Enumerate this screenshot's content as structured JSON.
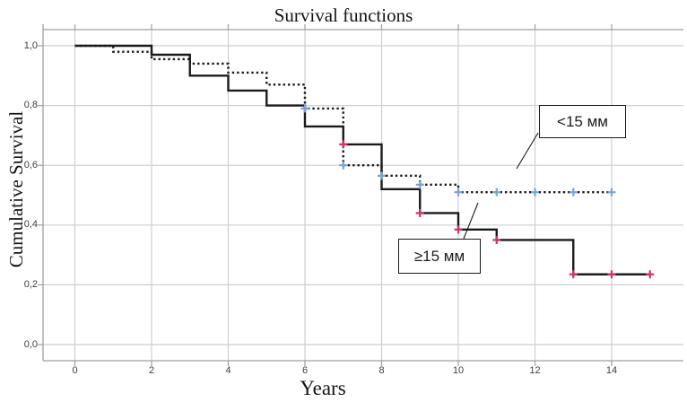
{
  "chart_data": {
    "type": "line",
    "variant": "kaplan_meier_survival_steps",
    "title": "Survival functions",
    "xlabel": "Years",
    "ylabel": "Cumulative Survival",
    "xlim": [
      -0.85,
      15.9
    ],
    "ylim": [
      -0.055,
      1.055
    ],
    "xticks": [
      0,
      2,
      4,
      6,
      8,
      10,
      12,
      14
    ],
    "yticks": [
      1.0,
      0.8,
      0.6,
      0.4,
      0.2,
      0.0
    ],
    "ytick_labels": [
      "1,0",
      "0,8",
      "0,6",
      "0,4",
      "0,2",
      "0,0"
    ],
    "grid": true,
    "colors": {
      "curve": "#1b1b1b",
      "gridline": "#cbcfd3",
      "axis_frame": "#9aa0a4",
      "censor_ge15": "#d23565",
      "censor_lt15": "#7aa3d8"
    },
    "series": [
      {
        "name": "≥15 мм",
        "line_style": "solid",
        "steps": [
          [
            0,
            1.0
          ],
          [
            2,
            0.97
          ],
          [
            3,
            0.9
          ],
          [
            4,
            0.85
          ],
          [
            5,
            0.8
          ],
          [
            6,
            0.73
          ],
          [
            7,
            0.67
          ],
          [
            8,
            0.52
          ],
          [
            9,
            0.44
          ],
          [
            10,
            0.385
          ],
          [
            11,
            0.35
          ],
          [
            13,
            0.235
          ]
        ],
        "end_x": 15,
        "censors": [
          [
            7,
            0.67
          ],
          [
            9,
            0.44
          ],
          [
            10,
            0.385
          ],
          [
            11,
            0.35
          ],
          [
            13,
            0.235
          ],
          [
            14,
            0.235
          ],
          [
            15,
            0.235
          ]
        ]
      },
      {
        "name": "<15 мм",
        "line_style": "dotted",
        "steps": [
          [
            0,
            1.0
          ],
          [
            1,
            0.98
          ],
          [
            2,
            0.955
          ],
          [
            3,
            0.94
          ],
          [
            4,
            0.91
          ],
          [
            5,
            0.87
          ],
          [
            6,
            0.79
          ],
          [
            7,
            0.6
          ],
          [
            8,
            0.565
          ],
          [
            9,
            0.535
          ],
          [
            10,
            0.51
          ]
        ],
        "end_x": 14,
        "censors": [
          [
            6,
            0.79
          ],
          [
            7,
            0.6
          ],
          [
            8,
            0.565
          ],
          [
            9,
            0.535
          ],
          [
            10,
            0.51
          ],
          [
            11,
            0.51
          ],
          [
            12,
            0.51
          ],
          [
            13,
            0.51
          ],
          [
            14,
            0.51
          ]
        ]
      }
    ],
    "annotations": [
      {
        "label": "<15 мм",
        "points_to": "dotted curve"
      },
      {
        "label": "≥15 мм",
        "points_to": "solid curve"
      }
    ]
  }
}
